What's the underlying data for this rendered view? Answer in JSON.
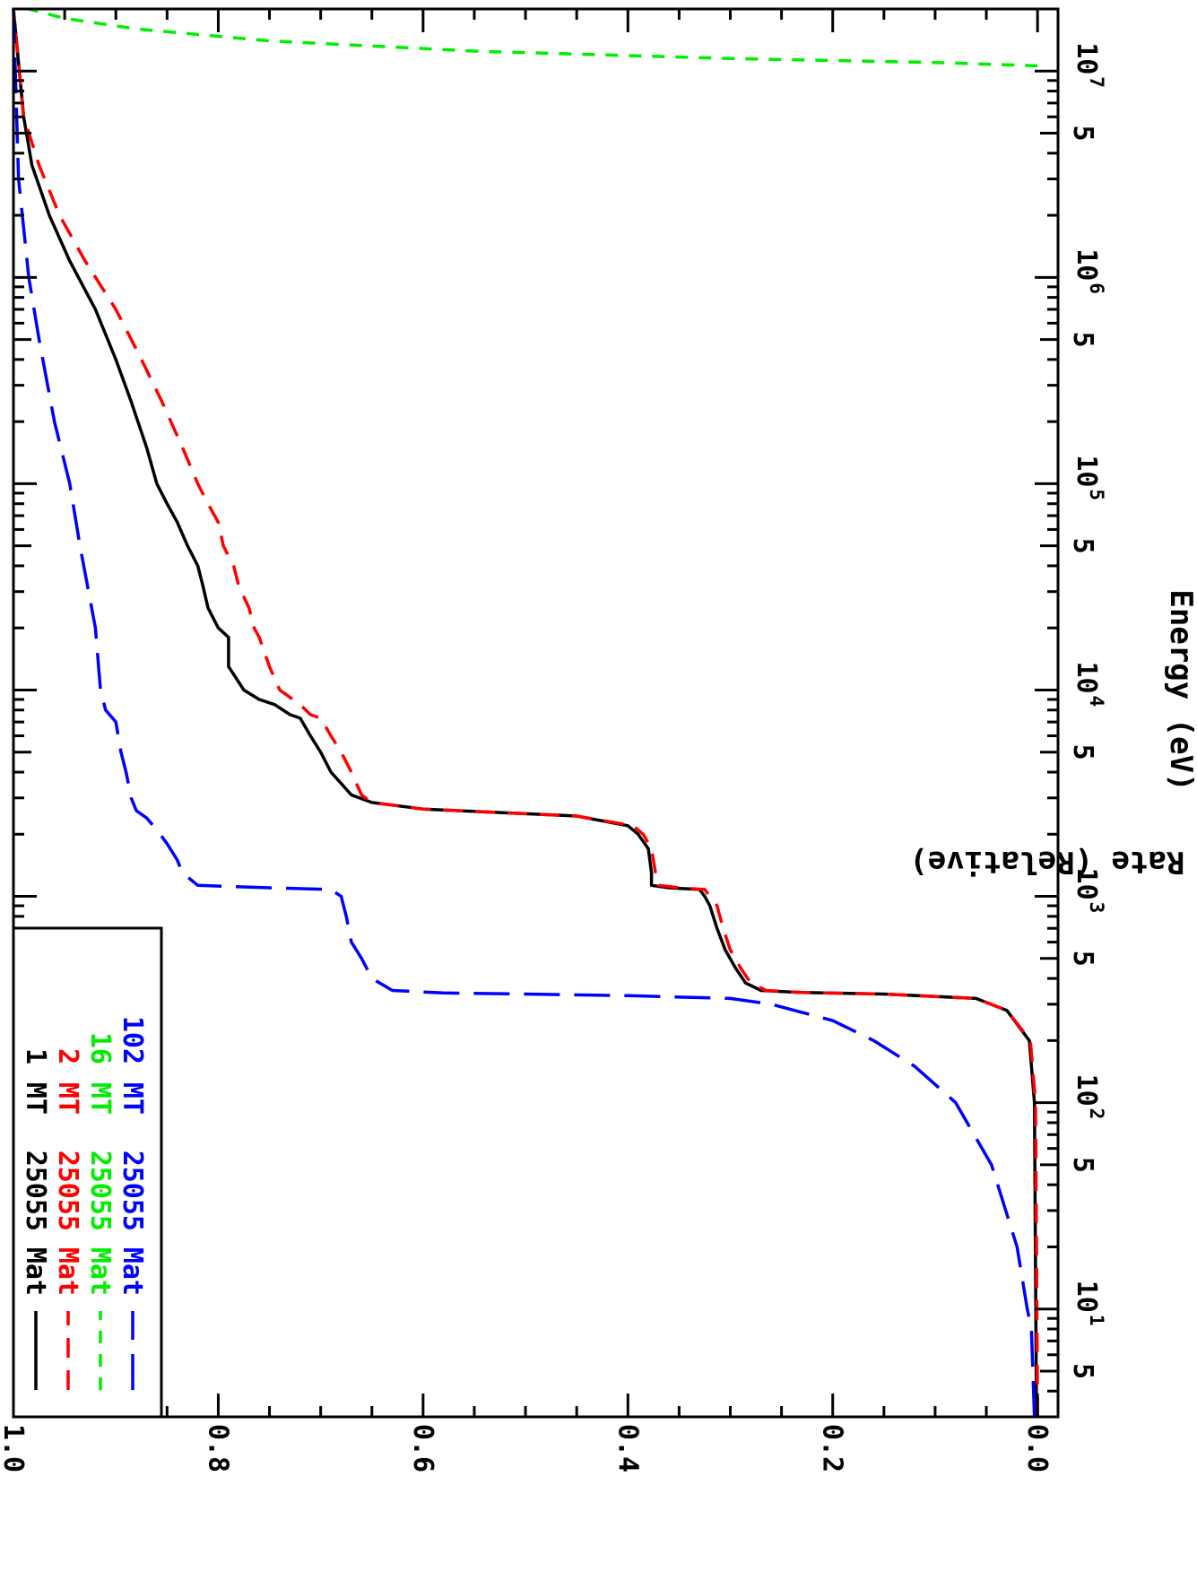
{
  "chart_data": {
    "type": "line",
    "orientation": "rotated-90-clockwise",
    "xlabel": "Energy (eV)",
    "ylabel": "Reaction Rate (Relative)",
    "xscale": "log",
    "xlim": [
      3.0,
      20000000
    ],
    "ylim": [
      -0.02,
      1.0
    ],
    "grid": false,
    "legend_position": "bottom-left",
    "x_major_ticks": [
      {
        "mantissa": "10",
        "exponent": "1",
        "value": 10
      },
      {
        "mantissa": "10",
        "exponent": "2",
        "value": 100
      },
      {
        "mantissa": "10",
        "exponent": "3",
        "value": 1000
      },
      {
        "mantissa": "10",
        "exponent": "4",
        "value": 10000
      },
      {
        "mantissa": "10",
        "exponent": "5",
        "value": 100000
      },
      {
        "mantissa": "10",
        "exponent": "6",
        "value": 1000000
      },
      {
        "mantissa": "10",
        "exponent": "7",
        "value": 10000000
      }
    ],
    "x_minor_labels": [
      {
        "label": "5",
        "value": 5
      },
      {
        "label": "5",
        "value": 50
      },
      {
        "label": "5",
        "value": 500
      },
      {
        "label": "5",
        "value": 5000
      },
      {
        "label": "5",
        "value": 50000
      },
      {
        "label": "5",
        "value": 500000
      },
      {
        "label": "5",
        "value": 5000000
      }
    ],
    "y_ticks": [
      {
        "label": "0.0",
        "value": 0.0
      },
      {
        "label": "0.2",
        "value": 0.2
      },
      {
        "label": "0.4",
        "value": 0.4
      },
      {
        "label": "0.6",
        "value": 0.6
      },
      {
        "label": "0.8",
        "value": 0.8
      },
      {
        "label": "1.0",
        "value": 1.0
      }
    ],
    "series": [
      {
        "name": "Mat 25055 MT 1",
        "legend_mat": "Mat",
        "legend_id": "25055",
        "legend_mt": "MT",
        "legend_num": "1",
        "color": "#000000",
        "dash": "none",
        "points": [
          [
            3,
            0.001
          ],
          [
            100,
            0.003
          ],
          [
            200,
            0.008
          ],
          [
            280,
            0.03
          ],
          [
            320,
            0.06
          ],
          [
            336,
            0.15
          ],
          [
            342,
            0.23
          ],
          [
            350,
            0.27
          ],
          [
            380,
            0.285
          ],
          [
            450,
            0.295
          ],
          [
            550,
            0.305
          ],
          [
            700,
            0.313
          ],
          [
            900,
            0.32
          ],
          [
            1000,
            0.325
          ],
          [
            1080,
            0.33
          ],
          [
            1100,
            0.36
          ],
          [
            1130,
            0.377
          ],
          [
            1300,
            0.377
          ],
          [
            1700,
            0.38
          ],
          [
            2000,
            0.39
          ],
          [
            2200,
            0.4
          ],
          [
            2450,
            0.45
          ],
          [
            2650,
            0.6
          ],
          [
            2850,
            0.65
          ],
          [
            3100,
            0.67
          ],
          [
            4000,
            0.69
          ],
          [
            5000,
            0.7
          ],
          [
            6000,
            0.71
          ],
          [
            7300,
            0.72
          ],
          [
            7600,
            0.73
          ],
          [
            8500,
            0.745
          ],
          [
            9000,
            0.76
          ],
          [
            10000,
            0.775
          ],
          [
            13000,
            0.79
          ],
          [
            18000,
            0.79
          ],
          [
            20000,
            0.8
          ],
          [
            25000,
            0.81
          ],
          [
            32000,
            0.815
          ],
          [
            40000,
            0.82
          ],
          [
            50000,
            0.83
          ],
          [
            65000,
            0.84
          ],
          [
            80000,
            0.85
          ],
          [
            100000,
            0.86
          ],
          [
            150000,
            0.87
          ],
          [
            250000,
            0.885
          ],
          [
            400000,
            0.9
          ],
          [
            700000,
            0.92
          ],
          [
            1200000,
            0.945
          ],
          [
            2000000,
            0.965
          ],
          [
            3500000,
            0.982
          ],
          [
            6000000,
            0.99
          ],
          [
            20000000,
            1.0
          ]
        ]
      },
      {
        "name": "Mat 25055 MT 2",
        "legend_mat": "Mat",
        "legend_id": "25055",
        "legend_mt": "MT",
        "legend_num": "2",
        "color": "#ff0000",
        "dash": "22 14",
        "points": [
          [
            3,
            0.0
          ],
          [
            100,
            0.002
          ],
          [
            200,
            0.007
          ],
          [
            280,
            0.03
          ],
          [
            320,
            0.06
          ],
          [
            336,
            0.15
          ],
          [
            342,
            0.23
          ],
          [
            350,
            0.265
          ],
          [
            380,
            0.28
          ],
          [
            450,
            0.29
          ],
          [
            550,
            0.3
          ],
          [
            700,
            0.307
          ],
          [
            900,
            0.313
          ],
          [
            1000,
            0.32
          ],
          [
            1080,
            0.325
          ],
          [
            1100,
            0.35
          ],
          [
            1130,
            0.37
          ],
          [
            1300,
            0.373
          ],
          [
            1700,
            0.377
          ],
          [
            2000,
            0.385
          ],
          [
            2200,
            0.395
          ],
          [
            2450,
            0.45
          ],
          [
            2650,
            0.6
          ],
          [
            2850,
            0.65
          ],
          [
            3100,
            0.66
          ],
          [
            4000,
            0.67
          ],
          [
            5000,
            0.68
          ],
          [
            6000,
            0.69
          ],
          [
            7300,
            0.7
          ],
          [
            7600,
            0.71
          ],
          [
            8500,
            0.72
          ],
          [
            10000,
            0.74
          ],
          [
            13000,
            0.75
          ],
          [
            18000,
            0.76
          ],
          [
            20000,
            0.765
          ],
          [
            25000,
            0.77
          ],
          [
            32000,
            0.78
          ],
          [
            40000,
            0.785
          ],
          [
            50000,
            0.795
          ],
          [
            65000,
            0.8
          ],
          [
            80000,
            0.81
          ],
          [
            100000,
            0.82
          ],
          [
            150000,
            0.835
          ],
          [
            250000,
            0.855
          ],
          [
            400000,
            0.875
          ],
          [
            700000,
            0.9
          ],
          [
            1200000,
            0.93
          ],
          [
            2000000,
            0.955
          ],
          [
            3500000,
            0.975
          ],
          [
            6000000,
            0.99
          ],
          [
            20000000,
            1.0
          ]
        ]
      },
      {
        "name": "Mat 25055 MT 16",
        "legend_mat": "Mat",
        "legend_id": "25055",
        "legend_mt": "MT",
        "legend_num": "16",
        "color": "#00ee00",
        "dash": "14 12",
        "points": [
          [
            10600000,
            0.0
          ],
          [
            11000000,
            0.1
          ],
          [
            11500000,
            0.3
          ],
          [
            12500000,
            0.55
          ],
          [
            14000000,
            0.75
          ],
          [
            16000000,
            0.88
          ],
          [
            18000000,
            0.95
          ],
          [
            20000000,
            0.985
          ]
        ]
      },
      {
        "name": "Mat 25055 MT 102",
        "legend_mat": "Mat",
        "legend_id": "25055",
        "legend_mt": "MT",
        "legend_num": "102",
        "color": "#0000ff",
        "dash": "40 16",
        "points": [
          [
            3,
            0.003
          ],
          [
            8,
            0.006
          ],
          [
            10,
            0.01
          ],
          [
            20,
            0.02
          ],
          [
            50,
            0.045
          ],
          [
            100,
            0.08
          ],
          [
            150,
            0.12
          ],
          [
            200,
            0.16
          ],
          [
            250,
            0.2
          ],
          [
            300,
            0.26
          ],
          [
            320,
            0.3
          ],
          [
            330,
            0.4
          ],
          [
            336,
            0.5
          ],
          [
            340,
            0.58
          ],
          [
            350,
            0.63
          ],
          [
            400,
            0.65
          ],
          [
            500,
            0.66
          ],
          [
            600,
            0.67
          ],
          [
            800,
            0.675
          ],
          [
            1000,
            0.68
          ],
          [
            1080,
            0.69
          ],
          [
            1100,
            0.75
          ],
          [
            1130,
            0.82
          ],
          [
            1300,
            0.835
          ],
          [
            1500,
            0.84
          ],
          [
            1800,
            0.85
          ],
          [
            2100,
            0.86
          ],
          [
            2400,
            0.87
          ],
          [
            2600,
            0.88
          ],
          [
            3000,
            0.885
          ],
          [
            4000,
            0.89
          ],
          [
            5000,
            0.895
          ],
          [
            7000,
            0.9
          ],
          [
            8000,
            0.91
          ],
          [
            10000,
            0.915
          ],
          [
            20000,
            0.92
          ],
          [
            50000,
            0.935
          ],
          [
            100000,
            0.945
          ],
          [
            200000,
            0.96
          ],
          [
            500000,
            0.975
          ],
          [
            1000000,
            0.985
          ],
          [
            3000000,
            0.995
          ],
          [
            20000000,
            1.0
          ]
        ]
      }
    ]
  }
}
